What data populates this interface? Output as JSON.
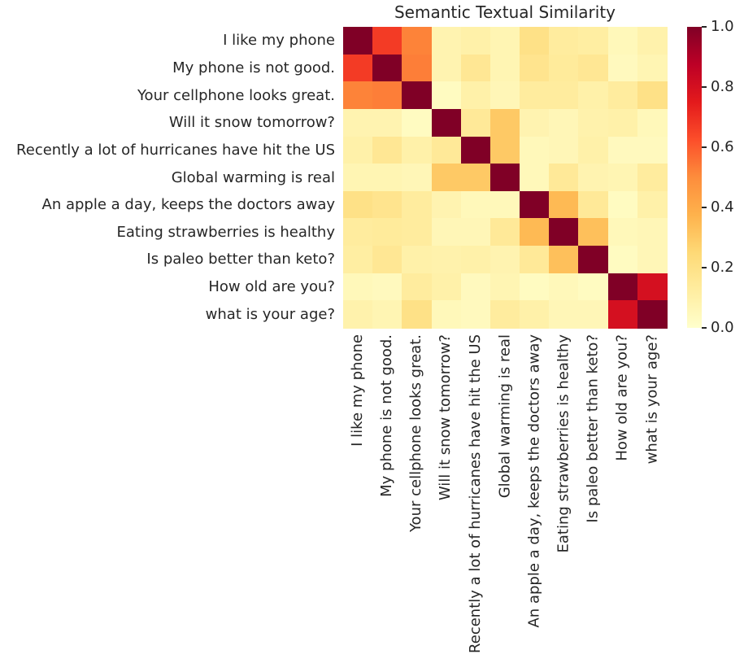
{
  "figure": {
    "background": "#ffffff",
    "text_color": "#262626"
  },
  "chart_data": {
    "type": "heatmap",
    "title": "Semantic Textual Similarity",
    "labels": [
      "I like my phone",
      "My phone is not good.",
      "Your cellphone looks great.",
      "Will it snow tomorrow?",
      "Recently a lot of hurricanes have hit the US",
      "Global warming is real",
      "An apple a day, keeps the doctors away",
      "Eating strawberries is healthy",
      "Is paleo better than keto?",
      "How old are you?",
      "what is your age?"
    ],
    "matrix": [
      [
        1.0,
        0.67,
        0.52,
        0.08,
        0.1,
        0.07,
        0.2,
        0.13,
        0.12,
        0.05,
        0.09
      ],
      [
        0.67,
        1.0,
        0.53,
        0.08,
        0.16,
        0.07,
        0.18,
        0.14,
        0.16,
        0.04,
        0.07
      ],
      [
        0.52,
        0.53,
        1.0,
        0.03,
        0.1,
        0.06,
        0.13,
        0.13,
        0.1,
        0.13,
        0.2
      ],
      [
        0.08,
        0.08,
        0.03,
        1.0,
        0.15,
        0.3,
        0.08,
        0.06,
        0.09,
        0.1,
        0.05
      ],
      [
        0.1,
        0.16,
        0.1,
        0.15,
        1.0,
        0.3,
        0.05,
        0.06,
        0.1,
        0.04,
        0.04
      ],
      [
        0.07,
        0.07,
        0.06,
        0.3,
        0.3,
        1.0,
        0.05,
        0.15,
        0.08,
        0.07,
        0.13
      ],
      [
        0.2,
        0.18,
        0.13,
        0.08,
        0.05,
        0.05,
        1.0,
        0.35,
        0.15,
        0.03,
        0.1
      ],
      [
        0.13,
        0.14,
        0.13,
        0.06,
        0.06,
        0.15,
        0.35,
        1.0,
        0.33,
        0.05,
        0.06
      ],
      [
        0.12,
        0.16,
        0.1,
        0.09,
        0.1,
        0.08,
        0.15,
        0.33,
        1.0,
        0.03,
        0.06
      ],
      [
        0.05,
        0.04,
        0.13,
        0.1,
        0.04,
        0.07,
        0.03,
        0.05,
        0.03,
        1.0,
        0.8
      ],
      [
        0.09,
        0.07,
        0.2,
        0.05,
        0.04,
        0.13,
        0.1,
        0.06,
        0.06,
        0.8,
        1.0
      ]
    ],
    "vmin": 0.0,
    "vmax": 1.0,
    "grid": false,
    "legend_position": "right-colorbar",
    "colorbar_ticks": [
      "1.0",
      "0.8",
      "0.6",
      "0.4",
      "0.2",
      "0.0"
    ],
    "colormap": {
      "name": "YlOrRd",
      "stops": [
        "#ffffcc",
        "#ffeda0",
        "#fed976",
        "#feb24c",
        "#fd8d3c",
        "#fc4e2a",
        "#e31a1c",
        "#bd0026",
        "#800026"
      ]
    }
  }
}
